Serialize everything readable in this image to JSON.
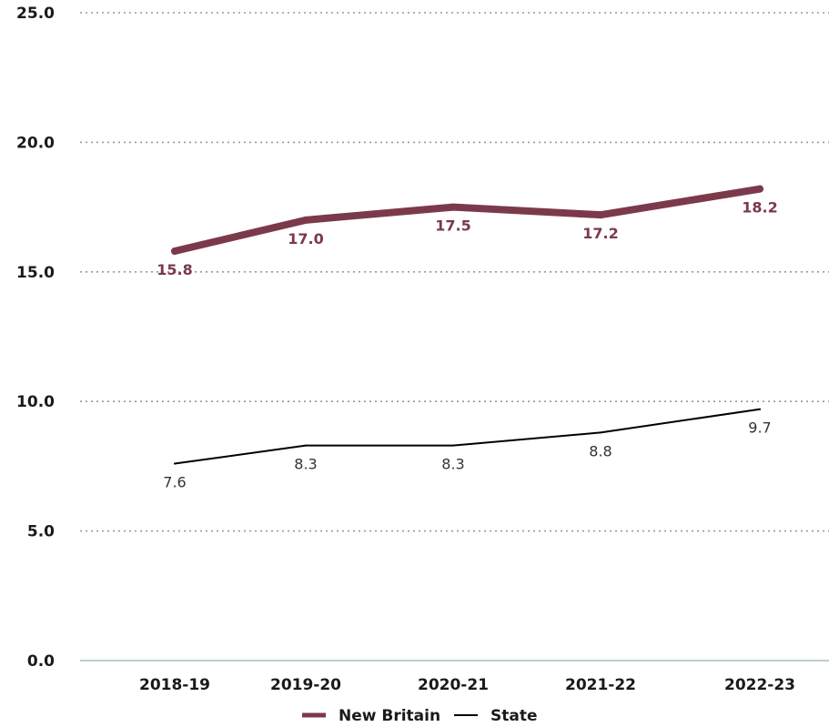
{
  "chart_data": {
    "type": "line",
    "categories": [
      "2018-19",
      "2019-20",
      "2020-21",
      "2021-22",
      "2022-23"
    ],
    "series": [
      {
        "name": "New Britain",
        "values": [
          15.8,
          17.0,
          17.5,
          17.2,
          18.2
        ],
        "color": "#7b3a4b"
      },
      {
        "name": "State",
        "values": [
          7.6,
          8.3,
          8.3,
          8.8,
          9.7
        ],
        "color": "#000000"
      }
    ],
    "yticks": [
      "0.0",
      "5.0",
      "10.0",
      "15.0",
      "20.0",
      "25.0"
    ],
    "ylim": [
      0,
      25
    ],
    "grid": true,
    "legend_position": "bottom-center",
    "colors": {
      "gridline": "#999999",
      "axis": "#7a9aa0"
    }
  }
}
